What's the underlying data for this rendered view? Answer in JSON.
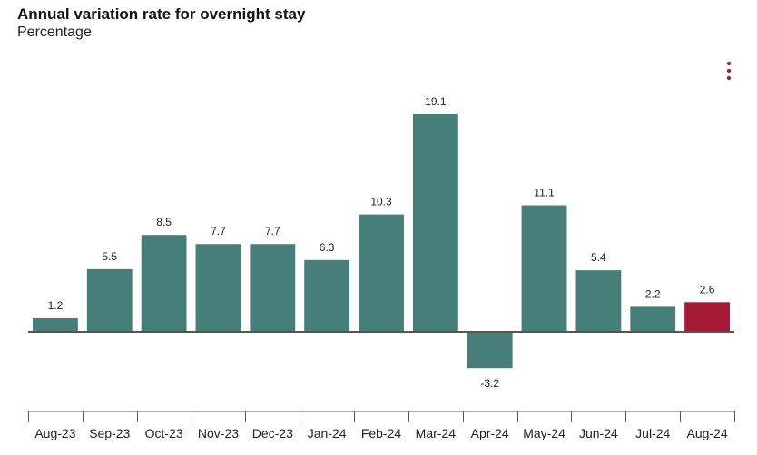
{
  "header": {
    "title": "Annual variation rate for overnight stay",
    "subtitle": "Percentage"
  },
  "menu": {
    "icon": "more-vertical-icon"
  },
  "colors": {
    "bar": "#477e77",
    "highlight": "#a51a34",
    "zero_line": "#555555",
    "axis": "#555555",
    "label_text": "#222222"
  },
  "chart_data": {
    "type": "bar",
    "title": "Annual variation rate for overnight stay",
    "subtitle": "Percentage",
    "xlabel": "",
    "ylabel": "",
    "categories": [
      "Aug-23",
      "Sep-23",
      "Oct-23",
      "Nov-23",
      "Dec-23",
      "Jan-24",
      "Feb-24",
      "Mar-24",
      "Apr-24",
      "May-24",
      "Jun-24",
      "Jul-24",
      "Aug-24"
    ],
    "values": [
      1.2,
      5.5,
      8.5,
      7.7,
      7.7,
      6.3,
      10.3,
      19.1,
      -3.2,
      11.1,
      5.4,
      2.2,
      2.6
    ],
    "data_labels": [
      "1.2",
      "5.5",
      "8.5",
      "7.7",
      "7.7",
      "6.3",
      "10.3",
      "19.1",
      "-3.2",
      "11.1",
      "5.4",
      "2.2",
      "2.6"
    ],
    "highlight_index": 12,
    "ylim": [
      -6.5,
      19.1
    ],
    "grid": false,
    "legend": "none"
  }
}
